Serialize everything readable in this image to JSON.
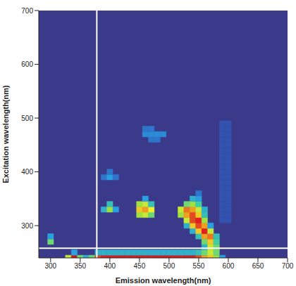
{
  "chart_data": {
    "type": "heatmap",
    "x_label": "Emission wavelength(nm)",
    "y_label": "Excitation wavelength(nm)",
    "xlim": [
      280,
      700
    ],
    "ylim": [
      240,
      700
    ],
    "xticks": [
      300,
      350,
      400,
      450,
      500,
      550,
      600,
      650,
      700
    ],
    "yticks": [
      300,
      400,
      500,
      600,
      700
    ],
    "zlim": [
      0,
      1
    ],
    "grid": false,
    "reference_lines": {
      "x": 378,
      "y": 258
    },
    "cells": [
      [
        330,
        240,
        0.6
      ],
      [
        340,
        240,
        0.95
      ],
      [
        350,
        240,
        0.5
      ],
      [
        360,
        240,
        0.35
      ],
      [
        370,
        240,
        0.5
      ],
      [
        380,
        240,
        0.85
      ],
      [
        390,
        240,
        0.9
      ],
      [
        400,
        240,
        0.92
      ],
      [
        410,
        240,
        0.92
      ],
      [
        420,
        240,
        0.92
      ],
      [
        430,
        240,
        0.92
      ],
      [
        440,
        240,
        0.92
      ],
      [
        450,
        240,
        0.92
      ],
      [
        460,
        240,
        0.92
      ],
      [
        470,
        240,
        0.92
      ],
      [
        480,
        240,
        0.92
      ],
      [
        490,
        240,
        0.92
      ],
      [
        500,
        240,
        0.92
      ],
      [
        510,
        240,
        0.92
      ],
      [
        520,
        240,
        0.92
      ],
      [
        530,
        240,
        0.92
      ],
      [
        540,
        240,
        0.92
      ],
      [
        550,
        240,
        0.85
      ],
      [
        560,
        240,
        0.75
      ],
      [
        570,
        240,
        0.7
      ],
      [
        580,
        240,
        0.55
      ],
      [
        590,
        240,
        0.3
      ],
      [
        340,
        250,
        0.3
      ],
      [
        380,
        250,
        0.35
      ],
      [
        390,
        250,
        0.35
      ],
      [
        400,
        250,
        0.35
      ],
      [
        410,
        250,
        0.35
      ],
      [
        420,
        250,
        0.35
      ],
      [
        430,
        250,
        0.35
      ],
      [
        440,
        250,
        0.35
      ],
      [
        450,
        250,
        0.35
      ],
      [
        460,
        250,
        0.35
      ],
      [
        470,
        250,
        0.35
      ],
      [
        480,
        250,
        0.35
      ],
      [
        490,
        250,
        0.35
      ],
      [
        500,
        250,
        0.35
      ],
      [
        510,
        250,
        0.35
      ],
      [
        520,
        250,
        0.35
      ],
      [
        530,
        250,
        0.35
      ],
      [
        540,
        250,
        0.35
      ],
      [
        550,
        250,
        0.4
      ],
      [
        560,
        250,
        0.5
      ],
      [
        570,
        250,
        0.6
      ],
      [
        580,
        250,
        0.5
      ],
      [
        560,
        260,
        0.35
      ],
      [
        570,
        260,
        0.6
      ],
      [
        580,
        260,
        0.5
      ],
      [
        300,
        270,
        0.5
      ],
      [
        560,
        270,
        0.5
      ],
      [
        570,
        270,
        0.7
      ],
      [
        580,
        270,
        0.45
      ],
      [
        300,
        280,
        0.3
      ],
      [
        550,
        280,
        0.4
      ],
      [
        560,
        280,
        0.75
      ],
      [
        570,
        280,
        0.8
      ],
      [
        580,
        280,
        0.4
      ],
      [
        540,
        290,
        0.35
      ],
      [
        550,
        290,
        0.7
      ],
      [
        560,
        290,
        0.9
      ],
      [
        570,
        290,
        0.6
      ],
      [
        530,
        300,
        0.35
      ],
      [
        540,
        300,
        0.7
      ],
      [
        550,
        300,
        0.85
      ],
      [
        560,
        300,
        0.75
      ],
      [
        570,
        300,
        0.3
      ],
      [
        530,
        310,
        0.6
      ],
      [
        540,
        310,
        0.85
      ],
      [
        550,
        310,
        0.9
      ],
      [
        560,
        310,
        0.55
      ],
      [
        450,
        320,
        0.55
      ],
      [
        460,
        320,
        0.6
      ],
      [
        470,
        320,
        0.5
      ],
      [
        520,
        320,
        0.55
      ],
      [
        530,
        320,
        0.75
      ],
      [
        540,
        320,
        0.85
      ],
      [
        550,
        320,
        0.7
      ],
      [
        560,
        320,
        0.4
      ],
      [
        390,
        330,
        0.35
      ],
      [
        400,
        330,
        0.55
      ],
      [
        410,
        330,
        0.3
      ],
      [
        450,
        330,
        0.7
      ],
      [
        460,
        330,
        0.75
      ],
      [
        470,
        330,
        0.65
      ],
      [
        520,
        330,
        0.6
      ],
      [
        530,
        330,
        0.8
      ],
      [
        540,
        330,
        0.75
      ],
      [
        550,
        330,
        0.6
      ],
      [
        560,
        330,
        0.35
      ],
      [
        400,
        340,
        0.4
      ],
      [
        450,
        340,
        0.55
      ],
      [
        460,
        340,
        0.6
      ],
      [
        470,
        340,
        0.4
      ],
      [
        530,
        340,
        0.5
      ],
      [
        540,
        340,
        0.55
      ],
      [
        550,
        340,
        0.45
      ],
      [
        460,
        350,
        0.3
      ],
      [
        540,
        350,
        0.35
      ],
      [
        550,
        350,
        0.3
      ],
      [
        550,
        360,
        0.2
      ],
      [
        390,
        390,
        0.2
      ],
      [
        400,
        390,
        0.3
      ],
      [
        410,
        390,
        0.2
      ],
      [
        400,
        400,
        0.2
      ],
      [
        470,
        460,
        0.2
      ],
      [
        480,
        460,
        0.2
      ],
      [
        460,
        470,
        0.25
      ],
      [
        470,
        470,
        0.25
      ],
      [
        480,
        470,
        0.25
      ],
      [
        490,
        470,
        0.25
      ],
      [
        460,
        480,
        0.2
      ],
      [
        470,
        480,
        0.2
      ],
      [
        590,
        310,
        0.1
      ],
      [
        600,
        310,
        0.1
      ],
      [
        590,
        320,
        0.1
      ],
      [
        600,
        320,
        0.1
      ],
      [
        590,
        330,
        0.1
      ],
      [
        600,
        330,
        0.1
      ],
      [
        590,
        340,
        0.1
      ],
      [
        600,
        340,
        0.1
      ],
      [
        590,
        350,
        0.1
      ],
      [
        600,
        350,
        0.1
      ],
      [
        590,
        360,
        0.1
      ],
      [
        600,
        360,
        0.1
      ],
      [
        590,
        370,
        0.1
      ],
      [
        600,
        370,
        0.1
      ],
      [
        590,
        380,
        0.1
      ],
      [
        600,
        380,
        0.1
      ],
      [
        590,
        390,
        0.1
      ],
      [
        600,
        390,
        0.1
      ],
      [
        590,
        400,
        0.1
      ],
      [
        600,
        400,
        0.1
      ],
      [
        590,
        410,
        0.1
      ],
      [
        600,
        410,
        0.1
      ],
      [
        590,
        420,
        0.1
      ],
      [
        600,
        420,
        0.1
      ],
      [
        590,
        430,
        0.1
      ],
      [
        600,
        430,
        0.1
      ],
      [
        590,
        440,
        0.1
      ],
      [
        600,
        440,
        0.1
      ],
      [
        590,
        450,
        0.1
      ],
      [
        600,
        450,
        0.1
      ],
      [
        590,
        460,
        0.1
      ],
      [
        600,
        460,
        0.1
      ],
      [
        590,
        470,
        0.1
      ],
      [
        600,
        470,
        0.1
      ],
      [
        590,
        480,
        0.1
      ],
      [
        600,
        480,
        0.1
      ],
      [
        590,
        490,
        0.1
      ],
      [
        600,
        490,
        0.1
      ]
    ]
  }
}
